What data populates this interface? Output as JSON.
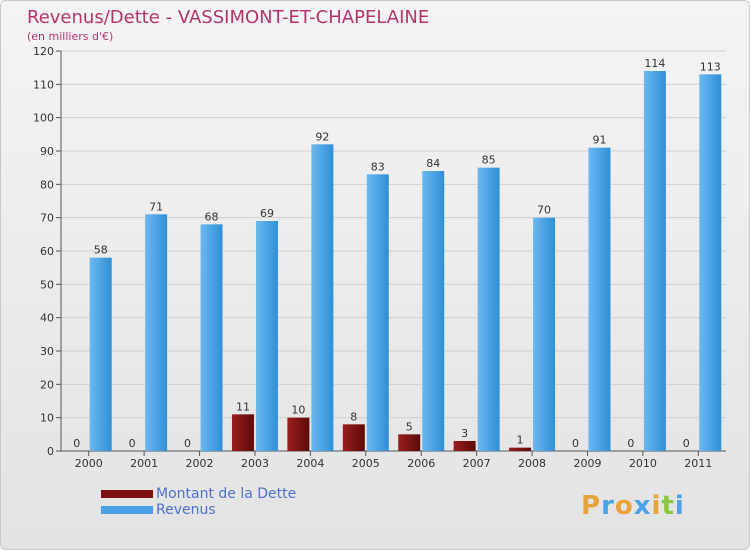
{
  "title": "Revenus/Dette - VASSIMONT-ET-CHAPELAINE",
  "subtitle": "(en milliers d'€)",
  "colors": {
    "title": "#b5336c",
    "dette": "#7b1010",
    "revenus": "#4aa3e6",
    "axis_text": "#333333",
    "grid": "#d0d0d0"
  },
  "legend": {
    "dette_label": "Montant de la Dette",
    "revenus_label": "Revenus"
  },
  "logo": {
    "text": "Proxiti"
  },
  "chart_data": {
    "type": "bar",
    "title": "Revenus/Dette - VASSIMONT-ET-CHAPELAINE",
    "subtitle": "(en milliers d'€)",
    "categories": [
      "2000",
      "2001",
      "2002",
      "2003",
      "2004",
      "2005",
      "2006",
      "2007",
      "2008",
      "2009",
      "2010",
      "2011"
    ],
    "series": [
      {
        "name": "Montant de la Dette",
        "values": [
          0,
          0,
          0,
          11,
          10,
          8,
          5,
          3,
          1,
          0,
          0,
          0
        ]
      },
      {
        "name": "Revenus",
        "values": [
          58,
          71,
          68,
          69,
          92,
          83,
          84,
          85,
          70,
          91,
          114,
          113
        ]
      }
    ],
    "ylim": [
      0,
      120
    ],
    "yticks": [
      0,
      10,
      20,
      30,
      40,
      50,
      60,
      70,
      80,
      90,
      100,
      110,
      120
    ],
    "grid": true,
    "legend_position": "bottom-left"
  }
}
